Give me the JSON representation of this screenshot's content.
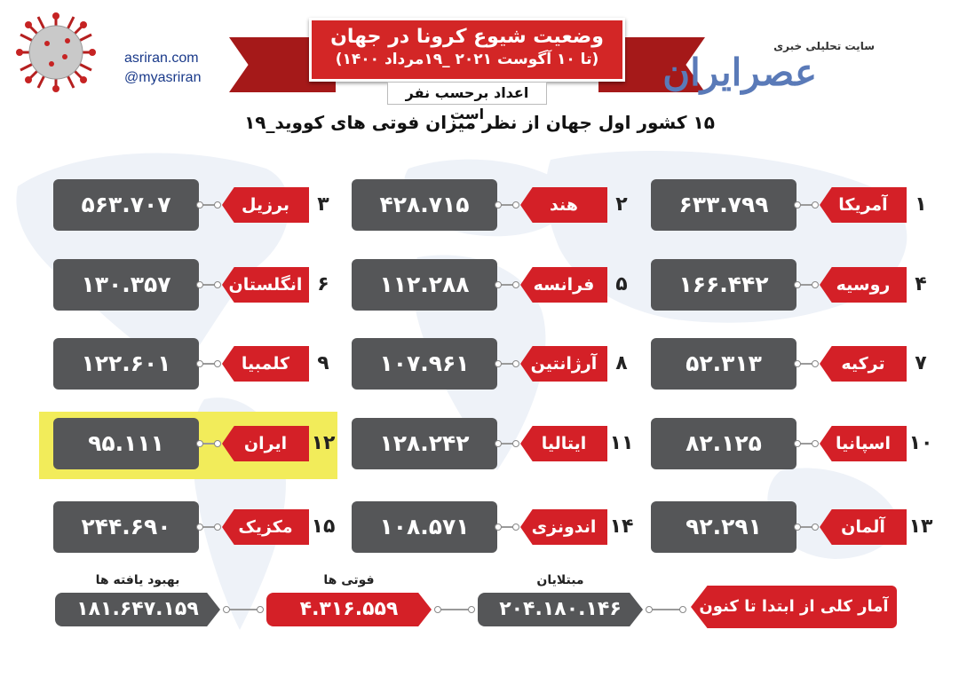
{
  "header": {
    "title": "وضعیت شیوع کرونا در جهان",
    "date_range": "(تا ۱۰ آگوست ۲۰۲۱ _۱۹مرداد ۱۴۰۰)",
    "unit_note": "اعداد برحسب نفر است",
    "caption": "۱۵ کشور اول جهان از نظر میزان فوتی های کووید_۱۹",
    "site_url": "asriran.com",
    "site_handle": "@myasriran",
    "logo_tagline": "سایت تحلیلی خبری",
    "logo_name": "عصرایران"
  },
  "countries": [
    {
      "rank": "۱",
      "name": "آمریکا",
      "deaths": "۶۳۳.۷۹۹"
    },
    {
      "rank": "۲",
      "name": "هند",
      "deaths": "۴۲۸.۷۱۵"
    },
    {
      "rank": "۳",
      "name": "برزیل",
      "deaths": "۵۶۳.۷۰۷"
    },
    {
      "rank": "۴",
      "name": "روسیه",
      "deaths": "۱۶۶.۴۴۲"
    },
    {
      "rank": "۵",
      "name": "فرانسه",
      "deaths": "۱۱۲.۲۸۸"
    },
    {
      "rank": "۶",
      "name": "انگلستان",
      "deaths": "۱۳۰.۳۵۷"
    },
    {
      "rank": "۷",
      "name": "ترکیه",
      "deaths": "۵۲.۳۱۳"
    },
    {
      "rank": "۸",
      "name": "آرژانتین",
      "deaths": "۱۰۷.۹۶۱"
    },
    {
      "rank": "۹",
      "name": "کلمبیا",
      "deaths": "۱۲۲.۶۰۱"
    },
    {
      "rank": "۱۰",
      "name": "اسپانیا",
      "deaths": "۸۲.۱۲۵"
    },
    {
      "rank": "۱۱",
      "name": "ایتالیا",
      "deaths": "۱۲۸.۲۴۲"
    },
    {
      "rank": "۱۲",
      "name": "ایران",
      "deaths": "۹۵.۱۱۱"
    },
    {
      "rank": "۱۳",
      "name": "آلمان",
      "deaths": "۹۲.۲۹۱"
    },
    {
      "rank": "۱۴",
      "name": "اندونزی",
      "deaths": "۱۰۸.۵۷۱"
    },
    {
      "rank": "۱۵",
      "name": "مکزیک",
      "deaths": "۲۴۴.۶۹۰"
    }
  ],
  "totals": {
    "label": "آمار کلی از ابتدا تا کنون",
    "cases_caption": "مبتلایان",
    "cases": "۲۰۴.۱۸۰.۱۴۶",
    "deaths_caption": "فوتی ها",
    "deaths": "۴.۳۱۶.۵۵۹",
    "recovered_caption": "بهبود یافته ها",
    "recovered": "۱۸۱.۶۴۷.۱۵۹"
  },
  "colors": {
    "accent_red": "#d42027",
    "dark_gray": "#555658",
    "highlight_yellow": "#f2ec5a"
  }
}
